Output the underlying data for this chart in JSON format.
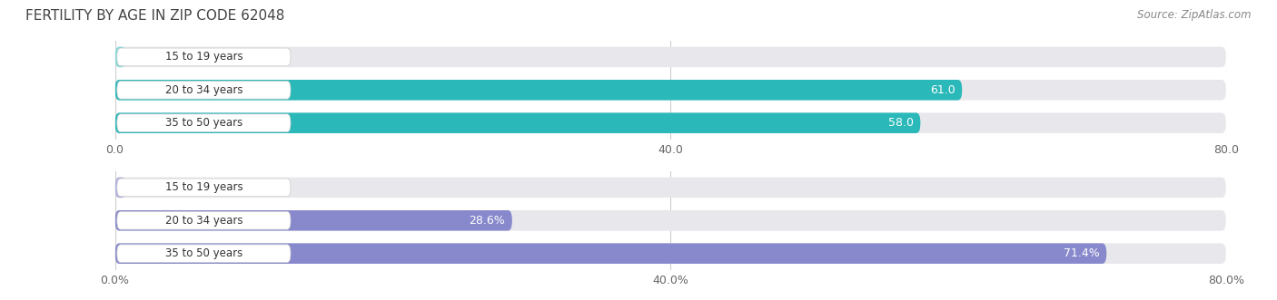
{
  "title": "FERTILITY BY AGE IN ZIP CODE 62048",
  "source": "Source: ZipAtlas.com",
  "top_chart": {
    "categories": [
      "15 to 19 years",
      "20 to 34 years",
      "35 to 50 years"
    ],
    "values": [
      0.0,
      61.0,
      58.0
    ],
    "xlim": [
      0,
      80
    ],
    "xticks": [
      0.0,
      40.0,
      80.0
    ],
    "xtick_labels": [
      "0.0",
      "40.0",
      "80.0"
    ],
    "bar_color_main": "#2ab8b8",
    "bar_color_light": "#88d8d8",
    "bar_bg_color": "#e8e8ec",
    "label_inside_color": "#ffffff",
    "label_outside_color": "#666666"
  },
  "bottom_chart": {
    "categories": [
      "15 to 19 years",
      "20 to 34 years",
      "35 to 50 years"
    ],
    "values": [
      0.0,
      28.6,
      71.4
    ],
    "xlim": [
      0,
      80
    ],
    "xticks": [
      0.0,
      40.0,
      80.0
    ],
    "xtick_labels": [
      "0.0%",
      "40.0%",
      "80.0%"
    ],
    "bar_color_main": "#8888cc",
    "bar_color_light": "#b0b0e0",
    "bar_bg_color": "#e8e8ec",
    "label_inside_color": "#ffffff",
    "label_outside_color": "#666666"
  },
  "bar_height": 0.62,
  "bg_color": "#ffffff",
  "title_fontsize": 11,
  "label_fontsize": 9,
  "tick_fontsize": 9,
  "cat_fontsize": 8.5
}
